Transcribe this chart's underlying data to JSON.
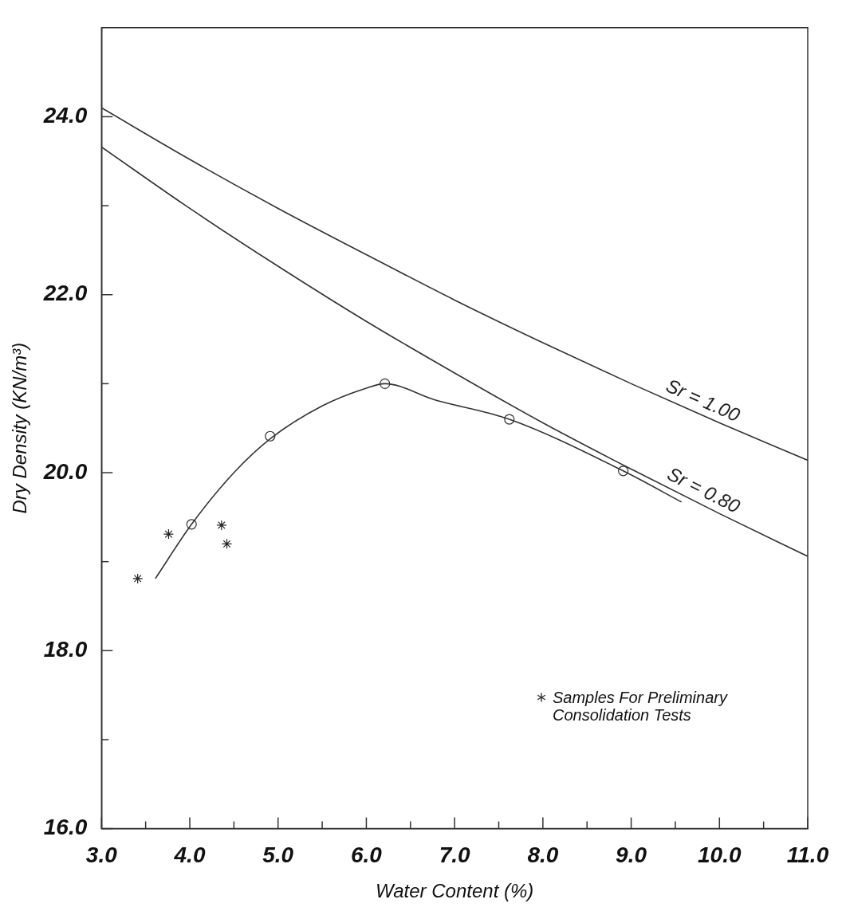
{
  "chart_data": {
    "type": "line",
    "xlabel": "Water Content (%)",
    "ylabel": "Dry Density (KN/m³)",
    "xlim": [
      3,
      11
    ],
    "xticks": [
      {
        "value": 3,
        "label": "3.0"
      },
      {
        "value": 3.5,
        "label": null
      },
      {
        "value": 4,
        "label": "4.0"
      },
      {
        "value": 4.5,
        "label": null
      },
      {
        "value": 5,
        "label": "5.0"
      },
      {
        "value": 5.5,
        "label": null
      },
      {
        "value": 6,
        "label": "6.0"
      },
      {
        "value": 6.5,
        "label": null
      },
      {
        "value": 7,
        "label": "7.0"
      },
      {
        "value": 7.5,
        "label": null
      },
      {
        "value": 8,
        "label": "8.0"
      },
      {
        "value": 8.5,
        "label": null
      },
      {
        "value": 9,
        "label": "9.0"
      },
      {
        "value": 9.5,
        "label": null
      },
      {
        "value": 10,
        "label": "10.0"
      },
      {
        "value": 10.5,
        "label": null
      },
      {
        "value": 11,
        "label": "11.0"
      }
    ],
    "ylim": [
      16,
      25
    ],
    "yticks": [
      {
        "value": 16,
        "label": "16.0"
      },
      {
        "value": 17,
        "label": null
      },
      {
        "value": 18,
        "label": "18.0"
      },
      {
        "value": 19,
        "label": null
      },
      {
        "value": 20,
        "label": "20.0"
      },
      {
        "value": 21,
        "label": null
      },
      {
        "value": 22,
        "label": "22.0"
      },
      {
        "value": 23,
        "label": null
      },
      {
        "value": 24,
        "label": "24.0"
      }
    ],
    "grid": false,
    "legend": "bottom right",
    "series": [
      {
        "name": "Sr = 1.00",
        "color": "#333333",
        "marker": "none",
        "x": [
          3,
          4,
          5,
          6,
          7,
          8,
          9,
          10,
          11
        ],
        "values": [
          24.1,
          23.52,
          22.97,
          22.45,
          21.94,
          21.46,
          21.0,
          20.56,
          20.14
        ]
      },
      {
        "name": "Sr = 0.80",
        "color": "#333333",
        "marker": "none",
        "x": [
          3,
          4,
          5,
          6,
          7,
          8,
          9,
          10,
          11
        ],
        "values": [
          23.66,
          22.97,
          22.32,
          21.7,
          21.12,
          20.56,
          20.04,
          19.54,
          19.06
        ]
      },
      {
        "color": "#333333",
        "marker": "none",
        "x": [
          3.61,
          4.02,
          4.5,
          4.91,
          5.5,
          6.0,
          6.21,
          6.77,
          7.62,
          8.91,
          9.57
        ],
        "values": [
          18.81,
          19.42,
          20.0,
          20.38,
          20.75,
          20.95,
          21.0,
          20.82,
          20.6,
          20.02,
          19.67
        ]
      },
      {
        "type": "scatter",
        "color": "#333333",
        "marker": "circle",
        "x": [
          4.02,
          4.91,
          6.21,
          7.62,
          8.91
        ],
        "values": [
          19.42,
          20.41,
          21.0,
          20.6,
          20.02
        ]
      },
      {
        "type": "scatter",
        "name": "Samples For Preliminary Consolidation Tests",
        "color": "#222222",
        "marker": "cross",
        "x": [
          3.41,
          3.76,
          4.36,
          4.42
        ],
        "values": [
          18.81,
          19.31,
          19.41,
          19.2
        ]
      }
    ]
  }
}
